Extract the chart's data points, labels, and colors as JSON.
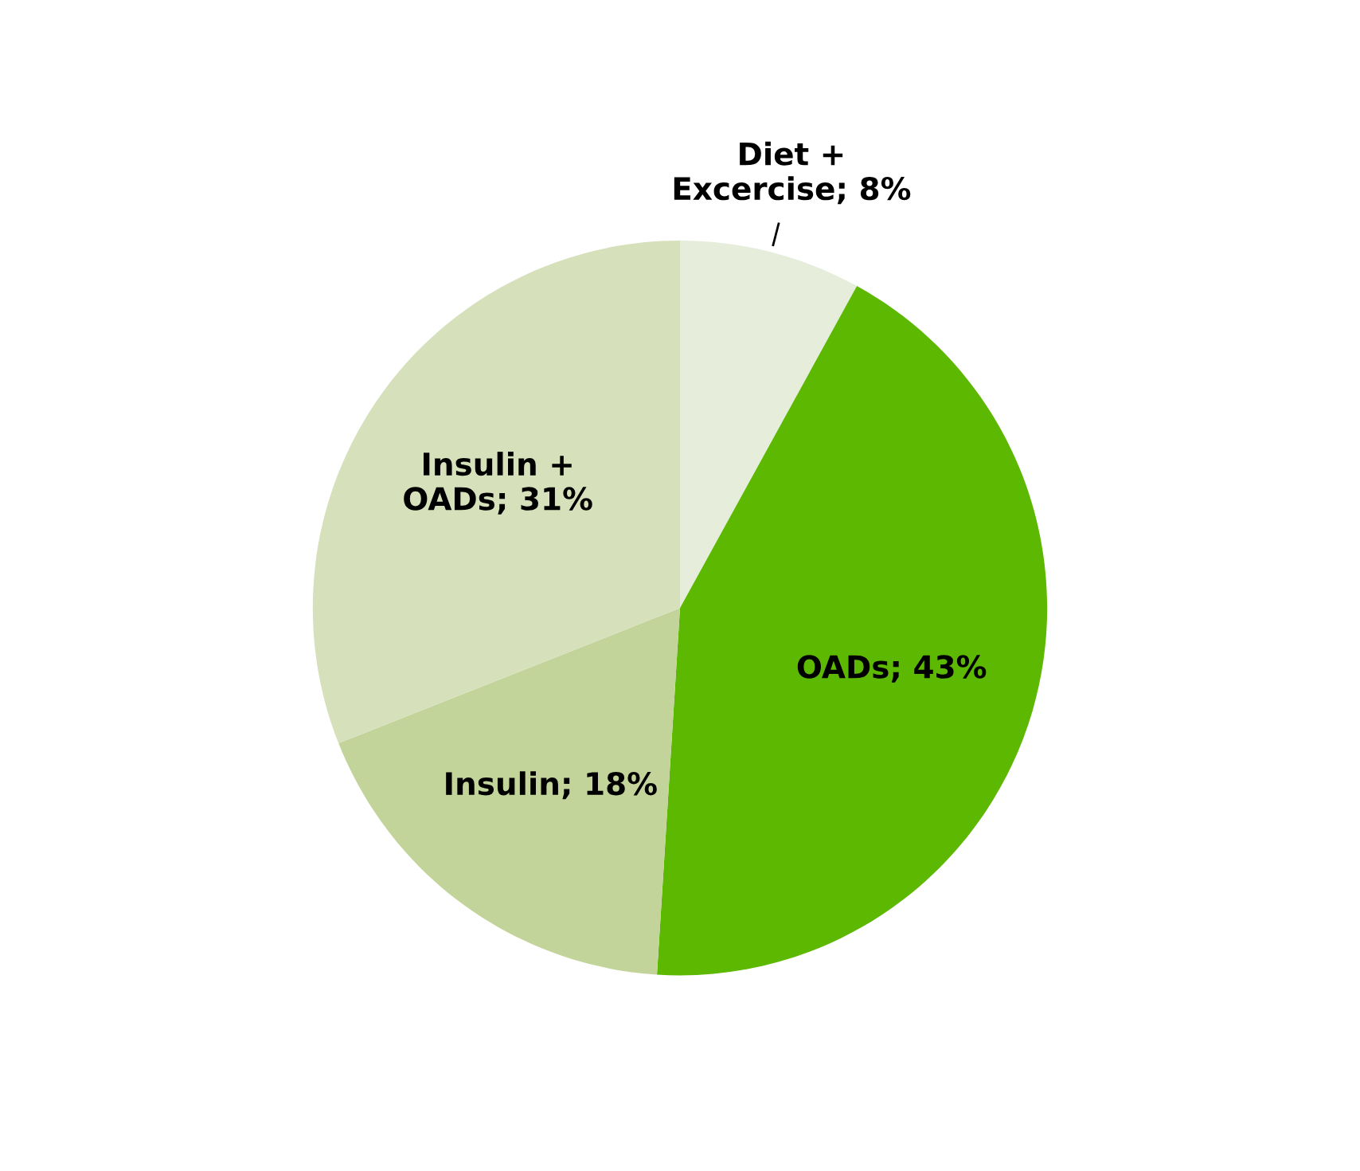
{
  "chart_data": {
    "type": "pie",
    "categories": [
      "Diet +\nExcercise; 8%",
      "OADs; 43%",
      "Insulin; 18%",
      "Insulin +\nOADs; 31%"
    ],
    "values": [
      8,
      43,
      18,
      31
    ],
    "colors": [
      "#e6eddb",
      "#5cb800",
      "#c2d49a",
      "#d6e0bb"
    ]
  }
}
